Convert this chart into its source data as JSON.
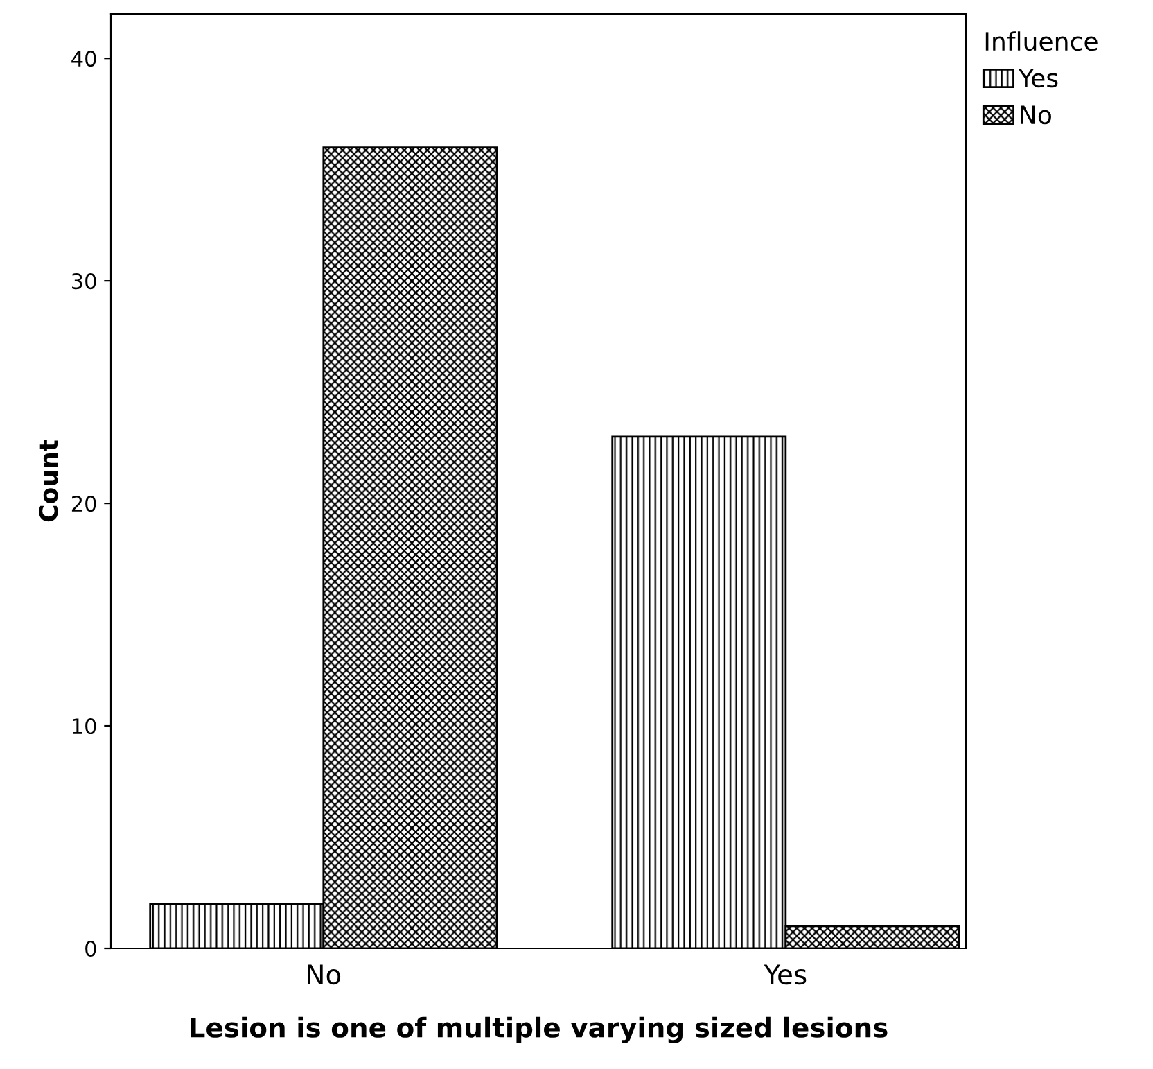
{
  "chart_data": {
    "type": "bar",
    "xlabel": "Lesion is one of multiple varying sized lesions",
    "ylabel": "Count",
    "legend_title": "Influence",
    "categories": [
      "No",
      "Yes"
    ],
    "series": [
      {
        "name": "Yes",
        "color": "#000000",
        "values": [
          2,
          23
        ]
      },
      {
        "name": "No",
        "color": "#000000",
        "values": [
          36,
          1
        ]
      }
    ],
    "ylim": [
      0,
      42
    ],
    "yticks": [
      0,
      10,
      20,
      30,
      40
    ],
    "grid": false,
    "legend": "top right"
  }
}
